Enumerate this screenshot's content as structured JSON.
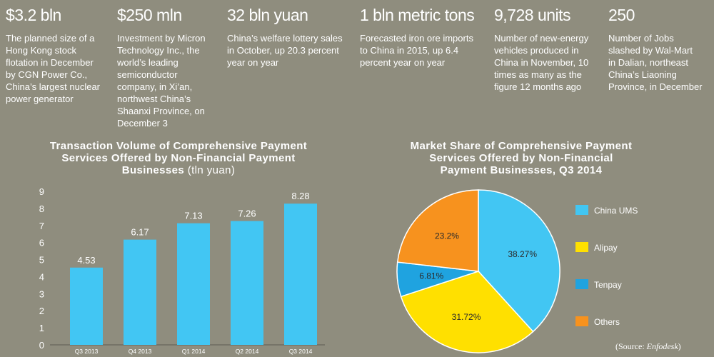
{
  "facts": [
    {
      "number": "$3.2 bln",
      "description": "The planned size of a\nHong Kong stock\nflotation in December\nby CGN Power Co.,\nChina’s largest nuclear\npower generator"
    },
    {
      "number": "$250 mln",
      "description": "Investment by Micron\nTechnology Inc., the\nworld’s leading\nsemiconductor\ncompany, in Xi’an,\nnorthwest China’s\nShaanxi Province, on\nDecember 3"
    },
    {
      "number": "32 bln yuan",
      "description": "China’s welfare lottery sales\nin October, up 20.3 percent\nyear on year"
    },
    {
      "number": "1 bln metric tons",
      "description": "Forecasted iron ore imports\nto China in 2015, up 6.4\npercent year on year"
    },
    {
      "number": "9,728 units",
      "description": "Number of new-energy\nvehicles produced in\nChina in November, 10\ntimes as many as the\nfigure 12 months ago"
    },
    {
      "number": "250",
      "description": "Number of Jobs\nslashed by Wal-Mart\nin Dalian, northeast\nChina’s Liaoning\nProvince, in December"
    }
  ],
  "chart_data": [
    {
      "type": "bar",
      "title": "Transaction Volume of Comprehensive Payment\nServices Offered by Non-Financial Payment\nBusinesses",
      "unit": "(tln yuan)",
      "categories": [
        "Q3 2013",
        "Q4 2013",
        "Q1 2014",
        "Q2 2014",
        "Q3 2014"
      ],
      "values": [
        4.53,
        6.17,
        7.13,
        7.26,
        8.28
      ],
      "value_labels": [
        "4.53",
        "6.17",
        "7.13",
        "7.26",
        "8.28"
      ],
      "y_ticks": [
        "0",
        "1",
        "2",
        "3",
        "4",
        "5",
        "6",
        "7",
        "8",
        "9"
      ],
      "ylim": [
        0,
        9
      ],
      "bar_color": "#42c6f3",
      "grid": false
    },
    {
      "type": "pie",
      "title": "Market Share of Comprehensive Payment\nServices Offered by Non-Financial\nPayment Businesses, Q3 2014",
      "slices": [
        {
          "label": "China UMS",
          "value": 38.27,
          "display": "38.27%",
          "color": "#42c6f3"
        },
        {
          "label": "Alipay",
          "value": 31.72,
          "display": "31.72%",
          "color": "#ffe000"
        },
        {
          "label": "Tenpay",
          "value": 6.81,
          "display": "6.81%",
          "color": "#1fa3e0"
        },
        {
          "label": "Others",
          "value": 23.2,
          "display": "23.2%",
          "color": "#f7921e"
        }
      ],
      "legend_position": "right"
    }
  ],
  "source": {
    "prefix": "(Source: ",
    "name": "Enfodesk",
    "suffix": ")"
  }
}
